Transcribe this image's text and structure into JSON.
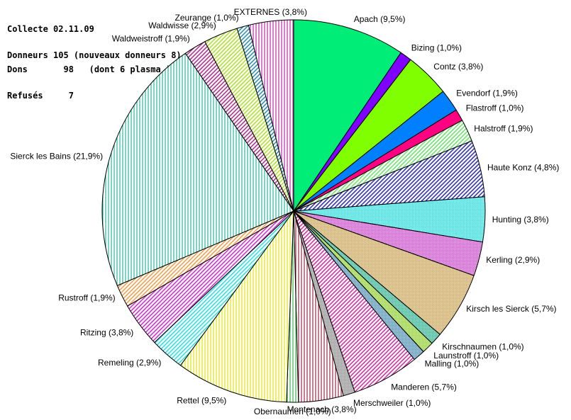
{
  "info": {
    "line1": "Collecte 02.11.09",
    "line2": "Donneurs 105 (nouveaux donneurs 8)",
    "line3": "Dons       98   (dont 6 plasma )",
    "line4": "Refusés     7"
  },
  "chart_data": {
    "type": "pie",
    "title": "",
    "start": "12 o'clock",
    "direction": "clockwise",
    "slices": [
      {
        "label": "Apach (9,5%)",
        "value": 9.5,
        "color": "#00ee77",
        "pattern": "solid"
      },
      {
        "label": "Bizing (1,0%)",
        "value": 1.0,
        "color": "#8000ff",
        "pattern": "solid"
      },
      {
        "label": "Contz (3,8%)",
        "value": 3.8,
        "color": "#80ff00",
        "pattern": "solid"
      },
      {
        "label": "Evendorf (1,9%)",
        "value": 1.9,
        "color": "#0080ff",
        "pattern": "solid"
      },
      {
        "label": "Flastroff (1,0%)",
        "value": 1.0,
        "color": "#ff0080",
        "pattern": "solid"
      },
      {
        "label": "Halstroff (1,9%)",
        "value": 1.9,
        "color": "#66dd66",
        "pattern": "diagonal"
      },
      {
        "label": "Haute Konz (4,8%)",
        "value": 4.8,
        "color": "#2222aa",
        "pattern": "diagonal"
      },
      {
        "label": "Hunting (3,8%)",
        "value": 3.8,
        "color": "#22dddd",
        "pattern": "light-fill"
      },
      {
        "label": "Kerling (2,9%)",
        "value": 2.9,
        "color": "#cc44cc",
        "pattern": "light-fill"
      },
      {
        "label": "Kirsch les Sierck (5,7%)",
        "value": 5.7,
        "color": "#c8a050",
        "pattern": "light-fill"
      },
      {
        "label": "Kirschnaumen (1,0%)",
        "value": 1.0,
        "color": "#22aa88",
        "pattern": "light-fill"
      },
      {
        "label": "Launstroff (1,0%)",
        "value": 1.0,
        "color": "#88cc22",
        "pattern": "light-fill"
      },
      {
        "label": "Malling (1,0%)",
        "value": 1.0,
        "color": "#4488aa",
        "pattern": "light-fill"
      },
      {
        "label": "Manderen (5,7%)",
        "value": 5.7,
        "color": "#cc2299",
        "pattern": "diagonal"
      },
      {
        "label": "Merschweiler (1,0%)",
        "value": 1.0,
        "color": "#888888",
        "pattern": "light-fill"
      },
      {
        "label": "Montenach (3,8%)",
        "value": 3.8,
        "color": "#aa2244",
        "pattern": "vertical"
      },
      {
        "label": "Obernaumen (1,0%)",
        "value": 1.0,
        "color": "#33bb44",
        "pattern": "vertical"
      },
      {
        "label": "Rettel (9,5%)",
        "value": 9.5,
        "color": "#e6e600",
        "pattern": "vertical"
      },
      {
        "label": "Remeling (2,9%)",
        "value": 2.9,
        "color": "#22dddd",
        "pattern": "diagonal"
      },
      {
        "label": "Ritzing (3,8%)",
        "value": 3.8,
        "color": "#cc22cc",
        "pattern": "diagonal"
      },
      {
        "label": "Rustroff (1,9%)",
        "value": 1.9,
        "color": "#ee9944",
        "pattern": "diagonal"
      },
      {
        "label": "Sierck les Bains (21,9%)",
        "value": 21.9,
        "color": "#22bb99",
        "pattern": "vertical"
      },
      {
        "label": "Waldweistroff (1,9%)",
        "value": 1.9,
        "color": "#aa2288",
        "pattern": "diagonal"
      },
      {
        "label": "Waldwisse (2,9%)",
        "value": 2.9,
        "color": "#aadd22",
        "pattern": "diagonal"
      },
      {
        "label": "Zeurange (1,0%)",
        "value": 1.0,
        "color": "#2288aa",
        "pattern": "diagonal"
      },
      {
        "label": "EXTERNES (3,8%)",
        "value": 3.8,
        "color": "#cc22aa",
        "pattern": "vertical"
      }
    ]
  }
}
